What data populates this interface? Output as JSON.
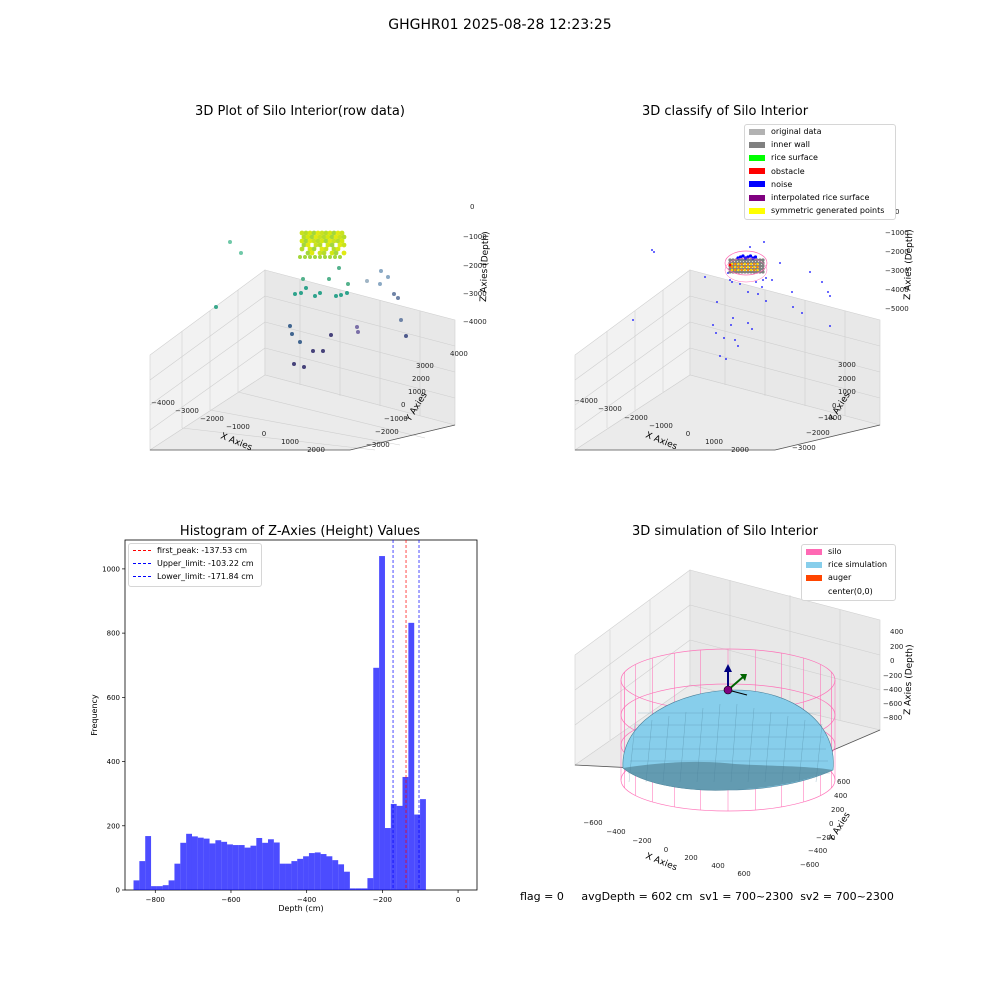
{
  "figure": {
    "suptitle": "GHGHR01 2025-08-28 12:23:25",
    "footer": "flag = 0     avgDepth = 602 cm  sv1 = 700~2300  sv2 = 700~2300"
  },
  "chart_data": [
    {
      "type": "scatter",
      "projection": "3d",
      "title": "3D Plot of Silo Interior(row data)",
      "xlabel": "X Axies",
      "ylabel": "Y Axies",
      "zlabel": "Z Axies (Depth)",
      "xticks": [
        "−4000",
        "−3000",
        "−2000",
        "−1000",
        "0",
        "1000",
        "2000"
      ],
      "yticks": [
        "−3000",
        "−2000",
        "−1000",
        "0",
        "1000",
        "2000",
        "3000",
        "4000"
      ],
      "zticks": [
        "0",
        "−1000",
        "−2000",
        "−3000",
        "−4000"
      ],
      "colormap": "viridis",
      "grid": true
    },
    {
      "type": "scatter",
      "projection": "3d",
      "title": "3D classify of Silo Interior",
      "xlabel": "X Axies",
      "ylabel": "Y Axies",
      "zlabel": "Z Axies (Depth)",
      "xticks": [
        "−4000",
        "−3000",
        "−2000",
        "−1000",
        "0",
        "1000",
        "2000"
      ],
      "yticks": [
        "−3000",
        "−2000",
        "−1000",
        "0",
        "1000",
        "2000",
        "3000"
      ],
      "zticks": [
        "0",
        "−1000",
        "−2000",
        "−3000",
        "−4000",
        "−5000"
      ],
      "legend_position": "top-right",
      "legend": [
        {
          "label": "original data",
          "color": "#b2b2b2"
        },
        {
          "label": "inner wall",
          "color": "#808080"
        },
        {
          "label": "rice surface",
          "color": "#00ff00"
        },
        {
          "label": "obstacle",
          "color": "#ff0000"
        },
        {
          "label": "noise",
          "color": "#0000ff"
        },
        {
          "label": "interpolated rice surface",
          "color": "#800080"
        },
        {
          "label": "symmetric generated points",
          "color": "#ffff00"
        }
      ],
      "grid": true
    },
    {
      "type": "bar",
      "title": "Histogram of Z-Axies (Height) Values",
      "xlabel": "Depth (cm)",
      "ylabel": "Frequency",
      "xlim": [
        -880,
        50
      ],
      "ylim": [
        0,
        1090
      ],
      "xticks": [
        -800,
        -600,
        -400,
        -200,
        0
      ],
      "xtick_labels": [
        "−800",
        "−600",
        "−400",
        "−200",
        "0"
      ],
      "yticks": [
        0,
        200,
        400,
        600,
        800,
        1000
      ],
      "yticks_labels": [
        "0",
        "200",
        "400",
        "600",
        "800",
        "1000"
      ],
      "bin_start": -857.5,
      "bin_width": 15.45,
      "values": [
        30,
        90,
        168,
        12,
        12,
        15,
        30,
        82,
        147,
        175,
        167,
        163,
        160,
        145,
        155,
        150,
        142,
        140,
        140,
        132,
        138,
        162,
        147,
        158,
        148,
        82,
        82,
        90,
        97,
        105,
        115,
        117,
        112,
        105,
        93,
        80,
        57,
        5,
        5,
        5,
        37,
        692,
        1040,
        193,
        268,
        262,
        352,
        832,
        235,
        283
      ],
      "bar_color": "#0000ff",
      "bar_alpha": 0.7,
      "reference_lines": [
        {
          "label": "first_peak: -137.53 cm",
          "x": -137.53,
          "color": "#ff0000"
        },
        {
          "label": "Upper_limit: -103.22 cm",
          "x": -103.22,
          "color": "#0000ff"
        },
        {
          "label": "Lower_limit: -171.84 cm",
          "x": -171.84,
          "color": "#0000ff"
        }
      ],
      "legend_position": "top-left"
    },
    {
      "type": "surface",
      "projection": "3d",
      "title": "3D simulation of Silo Interior",
      "xlabel": "X Axies",
      "ylabel": "Y Axies",
      "zlabel": "Z Axies (Depth)",
      "xticks": [
        "−600",
        "−400",
        "−200",
        "0",
        "200",
        "400",
        "600"
      ],
      "yticks": [
        "−600",
        "−400",
        "−200",
        "0",
        "200",
        "400",
        "600"
      ],
      "zticks": [
        "400",
        "200",
        "0",
        "−200",
        "−400",
        "−600",
        "−800"
      ],
      "legend_position": "top-right",
      "legend": [
        {
          "label": "silo",
          "color": "#ff69b4"
        },
        {
          "label": "rice simulation",
          "color": "#87ceeb"
        },
        {
          "label": "auger",
          "color": "#ff4500"
        },
        {
          "label": "center(0,0)",
          "color": "#ffffff"
        }
      ],
      "grid": true
    }
  ]
}
